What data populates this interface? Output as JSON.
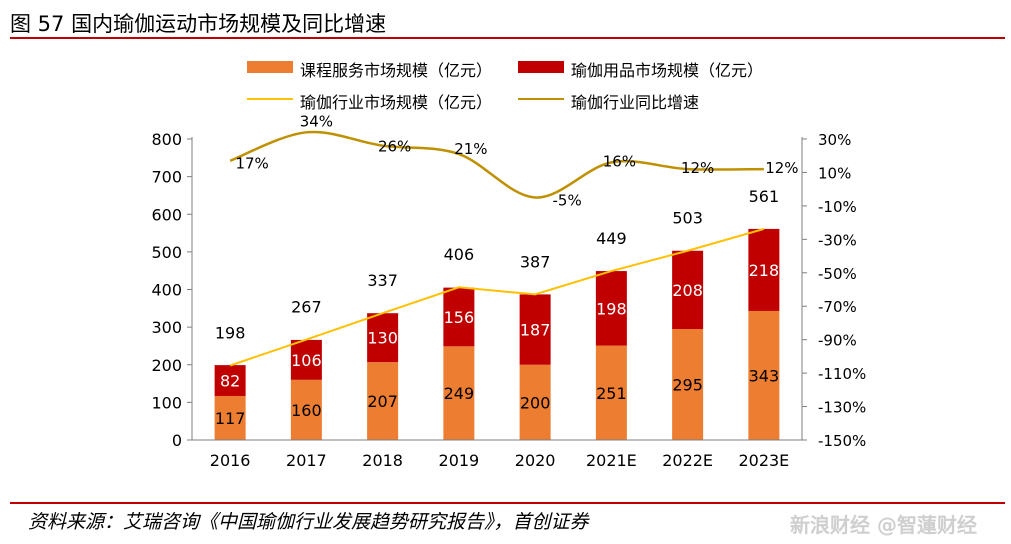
{
  "figure": {
    "title": "图 57 国内瑜伽运动市场规模及同比增速",
    "source": "资料来源：艾瑞咨询《中国瑜伽行业发展趋势研究报告》，首创证券",
    "watermark": "新浪财经 @智蓮财经"
  },
  "colors": {
    "course": "#ed7d31",
    "goods": "#c00000",
    "total_line": "#ffc000",
    "growth_line": "#bf9000",
    "rule": "#c00000"
  },
  "legend": {
    "course": "课程服务市场规模（亿元）",
    "goods": "瑜伽用品市场规模（亿元）",
    "total": "瑜伽行业市场规模（亿元）",
    "growth": "瑜伽行业同比增速"
  },
  "chart_data": {
    "type": "bar",
    "stacked": true,
    "categories": [
      "2016",
      "2017",
      "2018",
      "2019",
      "2020",
      "2021E",
      "2022E",
      "2023E"
    ],
    "series": [
      {
        "name": "课程服务市场规模（亿元）",
        "type": "bar",
        "axis": "left",
        "values": [
          117,
          160,
          207,
          249,
          200,
          251,
          295,
          343
        ]
      },
      {
        "name": "瑜伽用品市场规模（亿元）",
        "type": "bar",
        "axis": "left",
        "values": [
          82,
          106,
          130,
          156,
          187,
          198,
          208,
          218
        ]
      },
      {
        "name": "瑜伽行业市场规模（亿元）",
        "type": "line",
        "axis": "left",
        "values": [
          198,
          267,
          337,
          406,
          387,
          449,
          503,
          561
        ]
      },
      {
        "name": "瑜伽行业同比增速",
        "type": "line",
        "axis": "right",
        "unit": "%",
        "values": [
          17,
          34,
          26,
          21,
          -5,
          16,
          12,
          12
        ]
      }
    ],
    "course_labels": [
      "117",
      "160",
      "207",
      "249",
      "200",
      "251",
      "295",
      "343"
    ],
    "goods_labels": [
      "82",
      "106",
      "130",
      "156",
      "187",
      "198",
      "208",
      "218"
    ],
    "total_labels": [
      "198",
      "267",
      "337",
      "406",
      "387",
      "449",
      "503",
      "561"
    ],
    "growth_labels": [
      "17%",
      "34%",
      "26%",
      "21%",
      "-5%",
      "16%",
      "12%",
      "12%"
    ],
    "left_axis": {
      "ylim": [
        0,
        800
      ],
      "ticks": [
        "0",
        "100",
        "200",
        "300",
        "400",
        "500",
        "600",
        "700",
        "800"
      ]
    },
    "right_axis": {
      "ylim": [
        -150,
        30
      ],
      "ticks": [
        "30%",
        "10%",
        "-10%",
        "-30%",
        "-50%",
        "-70%",
        "-90%",
        "-110%",
        "-130%",
        "-150%"
      ]
    },
    "legend_position": "top",
    "grid": false
  }
}
